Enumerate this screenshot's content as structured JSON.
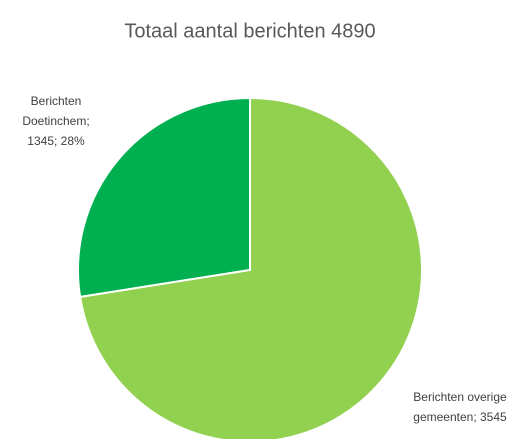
{
  "chart_data": {
    "type": "pie",
    "title": "Totaal  aantal berichten 4890",
    "values": [
      1345,
      3545
    ],
    "colors": [
      "#00b050",
      "#92d050"
    ],
    "data_labels": [
      [
        "Berichten",
        "Doetinchem;",
        "1345; 28%"
      ],
      [
        "Berichten overige",
        "gemeenten; 3545"
      ]
    ]
  }
}
